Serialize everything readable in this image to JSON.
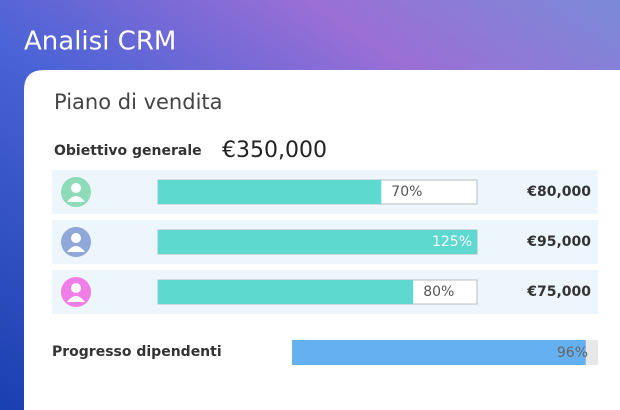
{
  "header": {
    "title": "Analisi CRM"
  },
  "card": {
    "title": "Piano di vendita",
    "goal": {
      "label": "Obiettivo generale",
      "amount": "€350,000"
    },
    "rows": [
      {
        "avatar_color": "#8ddbb8",
        "progress": 70,
        "progress_label": "70%",
        "amount": "€80,000"
      },
      {
        "avatar_color": "#8fa8d8",
        "progress": 125,
        "progress_label": "125%",
        "amount": "€95,000"
      },
      {
        "avatar_color": "#f07ee8",
        "progress": 80,
        "progress_label": "80%",
        "amount": "€75,000"
      }
    ],
    "bar_color": "#5dd9d0",
    "employees": {
      "label": "Progresso dipendenti",
      "progress": 96,
      "progress_label": "96%",
      "color": "#64b0f0"
    }
  }
}
